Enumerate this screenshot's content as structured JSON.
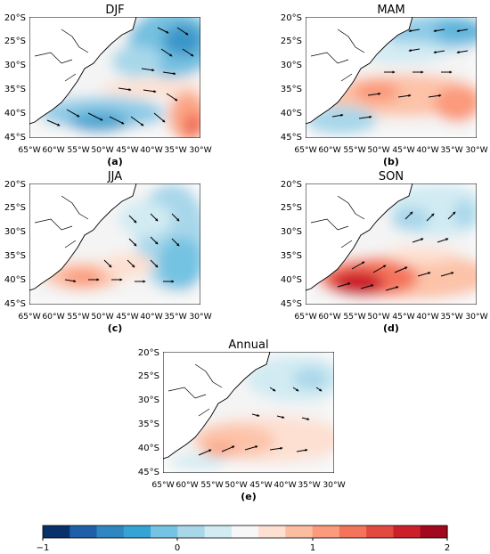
{
  "figure": {
    "panels": [
      {
        "id": "djf",
        "title": "DJF",
        "tag": "(a)"
      },
      {
        "id": "mam",
        "title": "MAM",
        "tag": "(b)"
      },
      {
        "id": "jja",
        "title": "JJA",
        "tag": "(c)"
      },
      {
        "id": "son",
        "title": "SON",
        "tag": "(d)"
      },
      {
        "id": "annual",
        "title": "Annual",
        "tag": "(e)"
      }
    ],
    "lat_ticks": [
      "20°S",
      "25°S",
      "30°S",
      "35°S",
      "40°S",
      "45°S"
    ],
    "lon_ticks": [
      "65°W",
      "60°W",
      "55°W",
      "50°W",
      "45°W",
      "40°W",
      "35°W",
      "30°W"
    ],
    "colorbar": {
      "ticks": [
        "−1",
        "0",
        "1",
        "2"
      ],
      "range": [
        -1,
        2
      ],
      "colors": [
        "#08306b",
        "#1f5fa8",
        "#2f86c1",
        "#35a3d4",
        "#74c3e2",
        "#a8d7ea",
        "#d2ebf3",
        "#f7f7f7",
        "#fde0d2",
        "#fcbca0",
        "#fb9a7c",
        "#f4735b",
        "#e34a3f",
        "#cb1f2a",
        "#a1081d"
      ]
    },
    "colors": {
      "land": "#ffffff",
      "coast": "#000000",
      "vector": "#000000"
    }
  }
}
